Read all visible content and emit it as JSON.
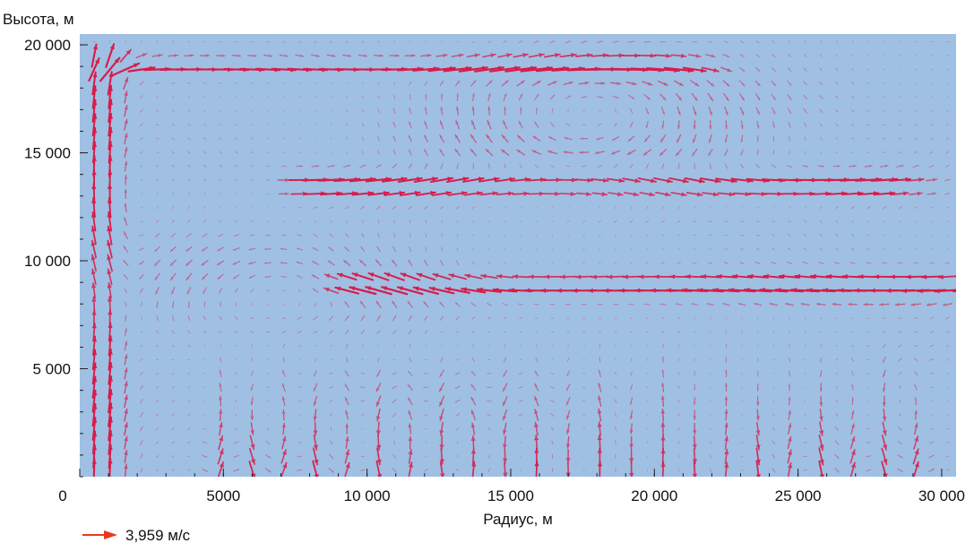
{
  "chart_data": {
    "type": "vector_field",
    "title": "",
    "xlabel": "Радиус, м",
    "ylabel": "Высота, м",
    "xlim": [
      0,
      30500
    ],
    "ylim": [
      0,
      20500
    ],
    "x_ticks": [
      {
        "value": 0,
        "label": "0"
      },
      {
        "value": 5000,
        "label": "5000"
      },
      {
        "value": 10000,
        "label": "10 000"
      },
      {
        "value": 15000,
        "label": "15 000"
      },
      {
        "value": 20000,
        "label": "20 000"
      },
      {
        "value": 25000,
        "label": "25 000"
      },
      {
        "value": 30000,
        "label": "30 000"
      }
    ],
    "y_ticks": [
      {
        "value": 5000,
        "label": "5 000"
      },
      {
        "value": 10000,
        "label": "10 000"
      },
      {
        "value": 15000,
        "label": "15 000"
      },
      {
        "value": 20000,
        "label": "20 000"
      }
    ],
    "x_minor_step": 1000,
    "y_minor_step": 1000,
    "reference_vector": {
      "magnitude": 3.959,
      "label": "3,959 м/с"
    },
    "colors": {
      "background": "#9fc0e3",
      "arrow": "#d81b4a",
      "reference_arrow": "#e83a1c"
    },
    "field_grid": {
      "radius_start": 500,
      "radius_step": 550,
      "height_start": 300,
      "height_step": 640,
      "cells_r": 56,
      "cells_z": 32
    },
    "field_features": [
      {
        "kind": "outflow_jet",
        "height": 19000,
        "radius_from": 1500,
        "radius_to": 20500,
        "direction": "outward"
      },
      {
        "kind": "jet",
        "height": 13500,
        "radius_from": 8000,
        "radius_to": 28000,
        "direction": "outward"
      },
      {
        "kind": "jet",
        "height": 8800,
        "radius_from": 9500,
        "radius_to": 30000,
        "direction": "inward"
      },
      {
        "kind": "vortex",
        "radius": 17500,
        "height": 16500,
        "sense": "clockwise"
      },
      {
        "kind": "vortex",
        "radius": 7500,
        "height": 8500,
        "sense": "counterclockwise"
      },
      {
        "kind": "updraft",
        "radius": 800,
        "height_from": 300,
        "height_to": 20000
      },
      {
        "kind": "vertical_bands",
        "height_from": 300,
        "height_to": 7000,
        "radius_from": 4000,
        "radius_to": 30000
      }
    ]
  }
}
